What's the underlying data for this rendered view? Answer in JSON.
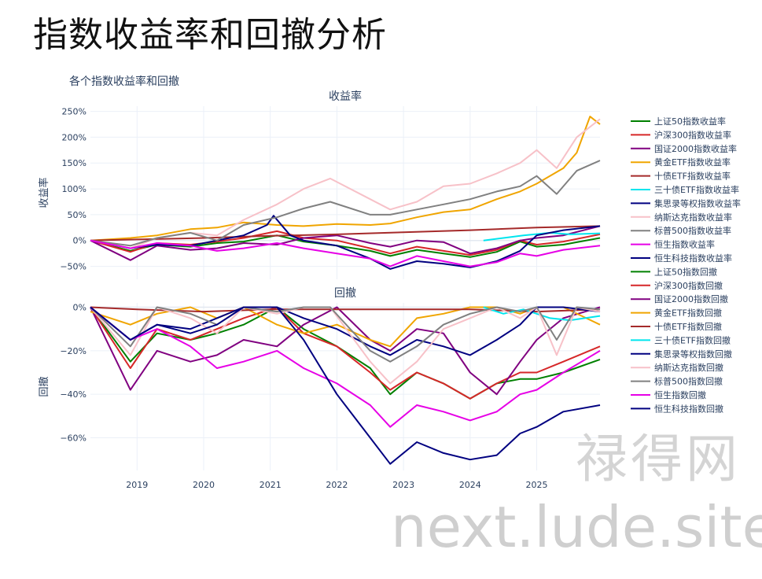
{
  "page_title": "指数收益率和回撤分析",
  "watermark": {
    "line1": "禄得网",
    "line2": "next.lude.site"
  },
  "chart_data": {
    "type": "line",
    "title": "各个指数收益率和回撤",
    "x_ticks": [
      "2019",
      "2020",
      "2021",
      "2022",
      "2023",
      "2024",
      "2025"
    ],
    "x_range": [
      2018.3,
      2025.95
    ],
    "subplots": [
      {
        "id": "returns",
        "subtitle": "收益率",
        "ylabel": "收益率",
        "ylim": [
          -75,
          260
        ],
        "y_ticks": [
          -50,
          0,
          50,
          100,
          150,
          200,
          250
        ],
        "y_tick_labels": [
          "−50%",
          "0%",
          "50%",
          "100%",
          "150%",
          "200%",
          "250%"
        ],
        "series": [
          {
            "name": "上证50指数收益率",
            "color": "#008000",
            "x": [
              2018.3,
              2018.9,
              2019.3,
              2019.8,
              2020.2,
              2020.6,
              2021.1,
              2021.5,
              2022.0,
              2022.5,
              2022.8,
              2023.2,
              2023.6,
              2024.0,
              2024.4,
              2024.75,
              2025.0,
              2025.4,
              2025.95
            ],
            "y": [
              0,
              -20,
              -8,
              -12,
              -5,
              -2,
              10,
              -2,
              -10,
              -20,
              -30,
              -18,
              -25,
              -32,
              -22,
              -2,
              -12,
              -8,
              5
            ]
          },
          {
            "name": "沪深300指数收益率",
            "color": "#d62728",
            "x": [
              2018.3,
              2018.9,
              2019.3,
              2019.8,
              2020.2,
              2020.6,
              2021.1,
              2021.5,
              2022.0,
              2022.5,
              2022.8,
              2023.2,
              2023.6,
              2024.0,
              2024.4,
              2024.75,
              2025.0,
              2025.4,
              2025.95
            ],
            "y": [
              0,
              -22,
              -5,
              -8,
              -2,
              5,
              18,
              5,
              0,
              -15,
              -25,
              -12,
              -20,
              -28,
              -18,
              0,
              -8,
              -2,
              12
            ]
          },
          {
            "name": "国证2000指数收益率",
            "color": "#800080",
            "x": [
              2018.3,
              2018.9,
              2019.3,
              2019.8,
              2020.2,
              2020.6,
              2021.1,
              2021.5,
              2022.0,
              2022.5,
              2022.8,
              2023.2,
              2023.6,
              2024.0,
              2024.4,
              2024.75,
              2025.0,
              2025.4,
              2025.95
            ],
            "y": [
              0,
              -38,
              -10,
              -18,
              -15,
              -5,
              -8,
              5,
              10,
              -5,
              -12,
              0,
              -3,
              -25,
              -15,
              0,
              5,
              10,
              28
            ]
          },
          {
            "name": "黄金ETF指数收益率",
            "color": "#f0a500",
            "x": [
              2018.3,
              2018.9,
              2019.3,
              2019.8,
              2020.2,
              2020.6,
              2021.1,
              2021.5,
              2022.0,
              2022.5,
              2022.8,
              2023.2,
              2023.6,
              2024.0,
              2024.4,
              2024.75,
              2025.0,
              2025.4,
              2025.6,
              2025.8,
              2025.95
            ],
            "y": [
              0,
              5,
              10,
              22,
              25,
              35,
              30,
              28,
              32,
              30,
              33,
              45,
              55,
              60,
              80,
              95,
              110,
              140,
              170,
              240,
              225
            ]
          },
          {
            "name": "十债ETF指数收益率",
            "color": "#a52a2a",
            "x": [
              2018.3,
              2019.0,
              2020.0,
              2021.0,
              2022.0,
              2023.0,
              2024.0,
              2025.0,
              2025.95
            ],
            "y": [
              0,
              2,
              5,
              9,
              12,
              16,
              20,
              25,
              28
            ]
          },
          {
            "name": "三十债ETF指数收益率",
            "color": "#00e5ee",
            "x": [
              2024.2,
              2024.5,
              2024.8,
              2025.2,
              2025.5,
              2025.95
            ],
            "y": [
              0,
              5,
              10,
              15,
              12,
              14
            ]
          },
          {
            "name": "集思录等权指数收益率",
            "color": "#000080",
            "x": [
              2018.3,
              2018.9,
              2019.3,
              2019.8,
              2020.2,
              2020.6,
              2020.95,
              2021.05,
              2021.3,
              2021.5,
              2022.0,
              2022.5,
              2022.8,
              2023.2,
              2023.6,
              2024.0,
              2024.4,
              2024.75,
              2025.0,
              2025.4,
              2025.95
            ],
            "y": [
              0,
              -15,
              -8,
              -10,
              0,
              10,
              30,
              48,
              10,
              0,
              -10,
              -35,
              -55,
              -40,
              -45,
              -52,
              -40,
              -20,
              10,
              20,
              28
            ]
          },
          {
            "name": "纳斯达克指数收益率",
            "color": "#f7c1c8",
            "x": [
              2018.3,
              2018.9,
              2019.3,
              2019.8,
              2020.2,
              2020.6,
              2021.1,
              2021.5,
              2021.9,
              2022.5,
              2022.8,
              2023.2,
              2023.6,
              2024.0,
              2024.4,
              2024.75,
              2025.0,
              2025.3,
              2025.6,
              2025.95
            ],
            "y": [
              0,
              -15,
              5,
              15,
              10,
              40,
              70,
              100,
              120,
              80,
              60,
              75,
              105,
              110,
              130,
              150,
              175,
              140,
              200,
              235
            ]
          },
          {
            "name": "标普500指数收益率",
            "color": "#808080",
            "x": [
              2018.3,
              2018.9,
              2019.3,
              2019.8,
              2020.2,
              2020.6,
              2021.1,
              2021.5,
              2021.9,
              2022.5,
              2022.8,
              2023.2,
              2023.6,
              2024.0,
              2024.4,
              2024.75,
              2025.0,
              2025.3,
              2025.6,
              2025.95
            ],
            "y": [
              0,
              -10,
              5,
              15,
              0,
              30,
              45,
              62,
              75,
              50,
              50,
              60,
              70,
              80,
              95,
              105,
              125,
              90,
              135,
              155
            ]
          },
          {
            "name": "恒生指数收益率",
            "color": "#e600e6",
            "x": [
              2018.3,
              2018.9,
              2019.3,
              2019.8,
              2020.2,
              2020.6,
              2021.1,
              2021.5,
              2022.0,
              2022.5,
              2022.8,
              2023.2,
              2023.6,
              2024.0,
              2024.4,
              2024.75,
              2025.0,
              2025.4,
              2025.95
            ],
            "y": [
              0,
              -15,
              -5,
              -10,
              -20,
              -15,
              -5,
              -15,
              -25,
              -35,
              -50,
              -30,
              -40,
              -50,
              -42,
              -25,
              -30,
              -18,
              -10
            ]
          },
          {
            "name": "恒生科技指数收益率",
            "color": "#000080",
            "x": [],
            "y": []
          }
        ]
      },
      {
        "id": "drawdowns",
        "subtitle": "回撤",
        "ylabel": "回撤",
        "ylim": [
          -75,
          2
        ],
        "y_ticks": [
          -60,
          -40,
          -20,
          0
        ],
        "y_tick_labels": [
          "−60%",
          "−40%",
          "−20%",
          "0%"
        ],
        "series": [
          {
            "name": "上证50指数回撤",
            "color": "#008000",
            "x": [
              2018.3,
              2018.9,
              2019.3,
              2019.8,
              2020.2,
              2020.6,
              2021.1,
              2021.5,
              2022.0,
              2022.5,
              2022.8,
              2023.2,
              2023.6,
              2024.0,
              2024.4,
              2024.75,
              2025.0,
              2025.4,
              2025.95
            ],
            "y": [
              0,
              -25,
              -12,
              -15,
              -12,
              -8,
              0,
              -10,
              -18,
              -28,
              -40,
              -30,
              -35,
              -42,
              -35,
              -33,
              -33,
              -30,
              -24
            ]
          },
          {
            "name": "沪深300指数回撤",
            "color": "#d62728",
            "x": [
              2018.3,
              2018.9,
              2019.3,
              2019.8,
              2020.2,
              2020.6,
              2021.1,
              2021.5,
              2022.0,
              2022.5,
              2022.8,
              2023.2,
              2023.6,
              2024.0,
              2024.4,
              2024.75,
              2025.0,
              2025.4,
              2025.95
            ],
            "y": [
              0,
              -28,
              -10,
              -15,
              -10,
              -5,
              0,
              -12,
              -18,
              -30,
              -38,
              -30,
              -35,
              -42,
              -35,
              -30,
              -30,
              -25,
              -18
            ]
          },
          {
            "name": "国证2000指数回撤",
            "color": "#800080",
            "x": [
              2018.3,
              2018.9,
              2019.3,
              2019.8,
              2020.2,
              2020.6,
              2021.1,
              2021.5,
              2022.0,
              2022.5,
              2022.8,
              2023.2,
              2023.6,
              2024.0,
              2024.4,
              2024.75,
              2025.0,
              2025.4,
              2025.95
            ],
            "y": [
              0,
              -38,
              -20,
              -25,
              -22,
              -15,
              -18,
              -8,
              0,
              -15,
              -20,
              -10,
              -12,
              -30,
              -40,
              -25,
              -15,
              -5,
              0
            ]
          },
          {
            "name": "黄金ETF指数回撤",
            "color": "#f0a500",
            "x": [
              2018.3,
              2018.9,
              2019.3,
              2019.8,
              2020.2,
              2020.6,
              2021.1,
              2021.5,
              2022.0,
              2022.5,
              2022.8,
              2023.2,
              2023.6,
              2024.0,
              2024.4,
              2024.75,
              2025.0,
              2025.4,
              2025.95
            ],
            "y": [
              -2,
              -8,
              -3,
              0,
              -5,
              0,
              -8,
              -12,
              -8,
              -15,
              -18,
              -5,
              -3,
              0,
              0,
              -3,
              0,
              0,
              -8
            ]
          },
          {
            "name": "十债ETF指数回撤",
            "color": "#a52a2a",
            "x": [
              2018.3,
              2019.0,
              2020.0,
              2021.0,
              2022.0,
              2023.0,
              2024.0,
              2025.0,
              2025.95
            ],
            "y": [
              0,
              -1,
              -2,
              -1,
              -1,
              -1,
              -1,
              -2,
              -1
            ]
          },
          {
            "name": "三十债ETF指数回撤",
            "color": "#00e5ee",
            "x": [
              2024.2,
              2024.5,
              2024.8,
              2025.2,
              2025.5,
              2025.95
            ],
            "y": [
              0,
              -3,
              -1,
              -5,
              -6,
              -4
            ]
          },
          {
            "name": "集思录等权指数回撤",
            "color": "#000080",
            "x": [
              2018.3,
              2018.9,
              2019.3,
              2019.8,
              2020.2,
              2020.6,
              2021.1,
              2021.5,
              2022.0,
              2022.5,
              2022.8,
              2023.2,
              2023.6,
              2024.0,
              2024.4,
              2024.75,
              2025.0,
              2025.4,
              2025.95
            ],
            "y": [
              0,
              -15,
              -8,
              -10,
              -5,
              0,
              0,
              -5,
              -10,
              -18,
              -22,
              -15,
              -18,
              -22,
              -15,
              -8,
              0,
              0,
              -2
            ]
          },
          {
            "name": "纳斯达克指数回撤",
            "color": "#f7c1c8",
            "x": [
              2018.3,
              2018.9,
              2019.3,
              2019.8,
              2020.2,
              2020.6,
              2021.1,
              2021.5,
              2021.9,
              2022.5,
              2022.8,
              2023.2,
              2023.6,
              2024.0,
              2024.4,
              2024.75,
              2025.0,
              2025.3,
              2025.6,
              2025.95
            ],
            "y": [
              0,
              -22,
              0,
              -5,
              -12,
              0,
              -3,
              0,
              0,
              -25,
              -35,
              -25,
              -10,
              -5,
              0,
              -5,
              0,
              -22,
              0,
              -2
            ]
          },
          {
            "name": "标普500指数回撤",
            "color": "#808080",
            "x": [
              2018.3,
              2018.9,
              2019.3,
              2019.8,
              2020.2,
              2020.6,
              2021.1,
              2021.5,
              2021.9,
              2022.5,
              2022.8,
              2023.2,
              2023.6,
              2024.0,
              2024.4,
              2024.75,
              2025.0,
              2025.3,
              2025.6,
              2025.95
            ],
            "y": [
              0,
              -18,
              0,
              -3,
              -8,
              0,
              -2,
              0,
              0,
              -20,
              -25,
              -18,
              -8,
              -3,
              0,
              -2,
              0,
              -15,
              0,
              -1
            ]
          },
          {
            "name": "恒生指数回撤",
            "color": "#e600e6",
            "x": [
              2018.3,
              2018.9,
              2019.3,
              2019.8,
              2020.2,
              2020.6,
              2021.1,
              2021.5,
              2022.0,
              2022.5,
              2022.8,
              2023.2,
              2023.6,
              2024.0,
              2024.4,
              2024.75,
              2025.0,
              2025.4,
              2025.95
            ],
            "y": [
              0,
              -15,
              -10,
              -18,
              -28,
              -25,
              -20,
              -28,
              -35,
              -45,
              -55,
              -45,
              -48,
              -52,
              -48,
              -40,
              -38,
              -30,
              -20
            ]
          },
          {
            "name": "恒生科技指数回撤",
            "color": "#000080",
            "x": [
              2018.3,
              2018.9,
              2019.3,
              2019.8,
              2020.2,
              2020.6,
              2021.1,
              2021.5,
              2022.0,
              2022.5,
              2022.8,
              2023.2,
              2023.6,
              2024.0,
              2024.4,
              2024.75,
              2025.0,
              2025.4,
              2025.95
            ],
            "y": [
              0,
              -15,
              -8,
              -12,
              -8,
              0,
              0,
              -15,
              -40,
              -60,
              -72,
              -62,
              -67,
              -70,
              -68,
              -58,
              -55,
              -48,
              -45
            ]
          }
        ]
      }
    ],
    "legend": {
      "position": "right"
    }
  }
}
